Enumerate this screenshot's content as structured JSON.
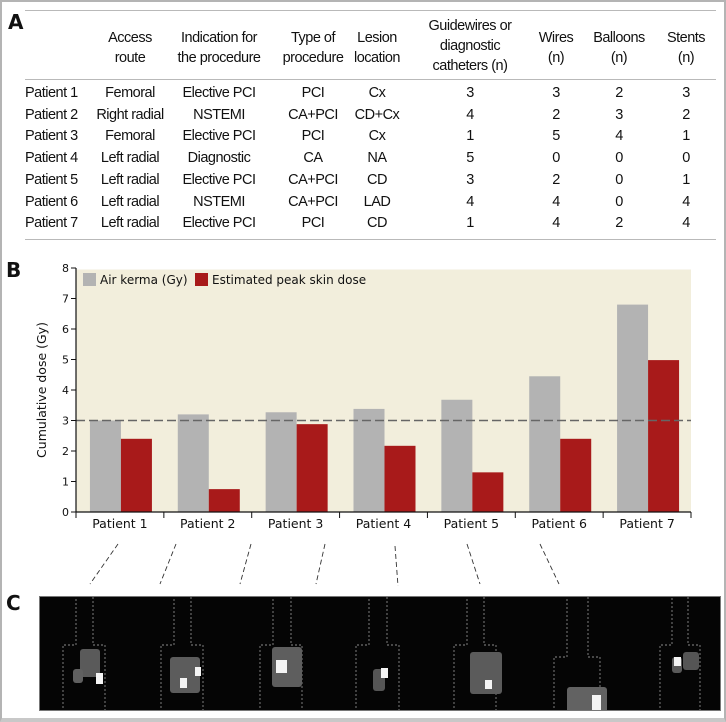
{
  "panels": {
    "a": "A",
    "b": "B",
    "c": "C"
  },
  "table": {
    "headers": [
      "",
      "Access\nroute",
      "Indication for\nthe procedure",
      "Type of\nprocedure",
      "Lesion\nlocation",
      "Guidewires or\ndiagnostic\ncatheters (n)",
      "Wires\n(n)",
      "Balloons\n(n)",
      "Stents\n(n)"
    ],
    "rows": [
      [
        "Patient 1",
        "Femoral",
        "Elective PCI",
        "PCI",
        "Cx",
        "3",
        "3",
        "2",
        "3"
      ],
      [
        "Patient 2",
        "Right radial",
        "NSTEMI",
        "CA+PCI",
        "CD+Cx",
        "4",
        "2",
        "3",
        "2"
      ],
      [
        "Patient 3",
        "Femoral",
        "Elective PCI",
        "PCI",
        "Cx",
        "1",
        "5",
        "4",
        "1"
      ],
      [
        "Patient 4",
        "Left radial",
        "Diagnostic",
        "CA",
        "NA",
        "5",
        "0",
        "0",
        "0"
      ],
      [
        "Patient 5",
        "Left radial",
        "Elective PCI",
        "CA+PCI",
        "CD",
        "3",
        "2",
        "0",
        "1"
      ],
      [
        "Patient 6",
        "Left radial",
        "NSTEMI",
        "CA+PCI",
        "LAD",
        "4",
        "4",
        "0",
        "4"
      ],
      [
        "Patient 7",
        "Left radial",
        "Elective PCI",
        "PCI",
        "CD",
        "1",
        "4",
        "2",
        "4"
      ]
    ]
  },
  "chart_data": {
    "type": "bar",
    "title": "",
    "xlabel": "",
    "ylabel": "Cumulative dose (Gy)",
    "ylim": [
      0,
      8
    ],
    "yticks": [
      "0",
      "1",
      "2",
      "3",
      "4",
      "5",
      "6",
      "7",
      "8"
    ],
    "categories": [
      "Patient 1",
      "Patient 2",
      "Patient 3",
      "Patient 4",
      "Patient 5",
      "Patient 6",
      "Patient 7"
    ],
    "series": [
      {
        "name": "Air kerma (Gy)",
        "color": "#b3b3b3",
        "values": [
          3.0,
          3.2,
          3.27,
          3.38,
          3.68,
          4.45,
          6.8
        ]
      },
      {
        "name": "Estimated peak skin dose",
        "color": "#a81a1a",
        "values": [
          2.4,
          0.75,
          2.88,
          2.17,
          1.3,
          2.4,
          4.98
        ]
      }
    ],
    "reference_line": {
      "value": 3,
      "style": "dashed",
      "color": "#666666"
    },
    "legend": "top-left",
    "background": "#f2eedc",
    "grid": false
  }
}
